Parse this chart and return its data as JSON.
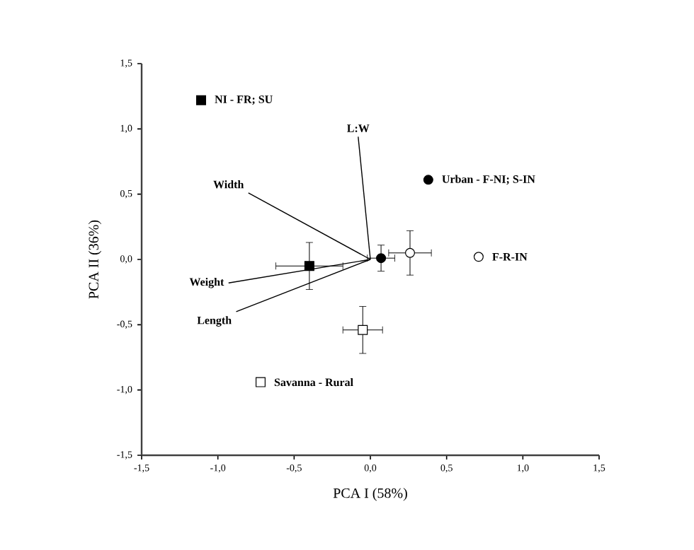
{
  "chart_data": {
    "type": "scatter",
    "xlabel": "PCA I (58%)",
    "ylabel": "PCA II (36%)",
    "xlim": [
      -1.5,
      1.5
    ],
    "ylim": [
      -1.5,
      1.5
    ],
    "xticks": [
      {
        "value": -1.5,
        "label": "-1,5"
      },
      {
        "value": -1.0,
        "label": "-1,0"
      },
      {
        "value": -0.5,
        "label": "-0,5"
      },
      {
        "value": 0.0,
        "label": "0,0"
      },
      {
        "value": 0.5,
        "label": "0,5"
      },
      {
        "value": 1.0,
        "label": "1,0"
      },
      {
        "value": 1.5,
        "label": "1,5"
      }
    ],
    "yticks": [
      {
        "value": -1.5,
        "label": "-1,5"
      },
      {
        "value": -1.0,
        "label": "-1,0"
      },
      {
        "value": -0.5,
        "label": "-0,5"
      },
      {
        "value": 0.0,
        "label": "0,0"
      },
      {
        "value": 0.5,
        "label": "0,5"
      },
      {
        "value": 1.0,
        "label": "1,0"
      },
      {
        "value": 1.5,
        "label": "1,5"
      }
    ],
    "grid": false,
    "legend": "top left",
    "series": [
      {
        "name": "NI - FR; SU",
        "marker": "square",
        "color": "#000000",
        "x": [
          -0.4
        ],
        "values": [
          -0.05
        ],
        "errors": [
          0.18
        ],
        "xerrors": [
          0.22
        ]
      },
      {
        "name": "Urban - F-NI; S-IN",
        "marker": "circle",
        "color": "#000000",
        "x": [
          0.07
        ],
        "values": [
          0.01
        ],
        "errors": [
          0.1
        ],
        "xerrors": [
          0.09
        ]
      },
      {
        "name": "F-R-IN",
        "marker": "circle",
        "color": "#ffffff",
        "x": [
          0.26
        ],
        "values": [
          0.05
        ],
        "errors": [
          0.17
        ],
        "xerrors": [
          0.14
        ]
      },
      {
        "name": "Savanna - Rural",
        "marker": "square",
        "color": "#ffffff",
        "x": [
          -0.05
        ],
        "values": [
          -0.54
        ],
        "errors": [
          0.18
        ],
        "xerrors": [
          0.13
        ]
      },
      {
        "name": "L:W",
        "type": "line",
        "marker": "none",
        "color": "#000000",
        "x": [
          0,
          -0.08
        ],
        "values": [
          0,
          0.94
        ]
      },
      {
        "name": "Width",
        "type": "line",
        "marker": "none",
        "color": "#000000",
        "x": [
          0,
          -0.8
        ],
        "values": [
          0,
          0.51
        ]
      },
      {
        "name": "Weight",
        "type": "line",
        "marker": "none",
        "color": "#000000",
        "x": [
          0,
          -0.93
        ],
        "values": [
          0,
          -0.18
        ]
      },
      {
        "name": "Length",
        "type": "line",
        "marker": "none",
        "color": "#000000",
        "x": [
          0,
          -0.88
        ],
        "values": [
          0,
          -0.4
        ]
      }
    ]
  }
}
